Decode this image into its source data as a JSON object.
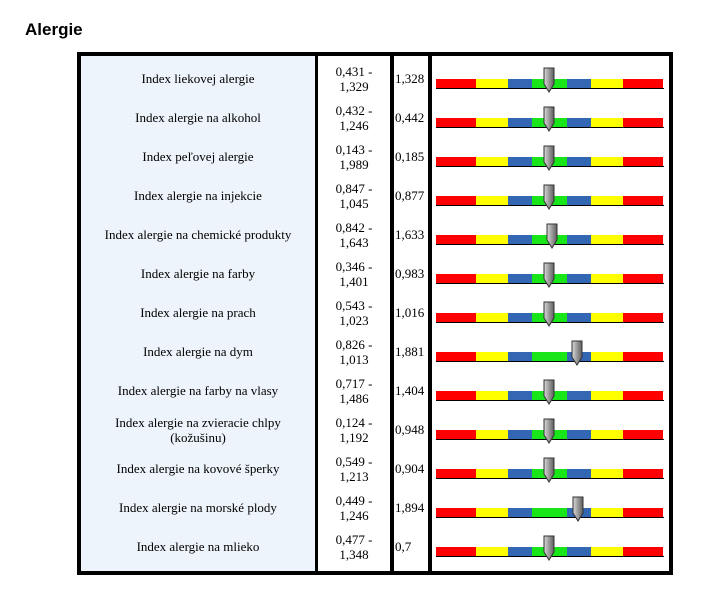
{
  "heading": "Alergie",
  "rows": [
    {
      "name": "Index liekovej alergie",
      "range_lo": "0,431 -",
      "range_hi": "1,329",
      "value": "1,328",
      "level": 1.328
    },
    {
      "name": "Index alergie na alkohol",
      "range_lo": "0,432 -",
      "range_hi": "1,246",
      "value": "0,442",
      "level": 0.442
    },
    {
      "name": "Index peľovej alergie",
      "range_lo": "0,143 -",
      "range_hi": "1,989",
      "value": "0,185",
      "level": 0.185
    },
    {
      "name": "Index alergie na injekcie",
      "range_lo": "0,847 -",
      "range_hi": "1,045",
      "value": "0,877",
      "level": 0.877
    },
    {
      "name": "Index alergie na chemické produkty",
      "range_lo": "0,842 -",
      "range_hi": "1,643",
      "value": "1,633",
      "level": 1.633
    },
    {
      "name": "Index alergie na farby",
      "range_lo": "0,346 -",
      "range_hi": "1,401",
      "value": "0,983",
      "level": 0.983
    },
    {
      "name": "Index alergie na prach",
      "range_lo": "0,543 -",
      "range_hi": "1,023",
      "value": "1,016",
      "level": 1.016
    },
    {
      "name": "Index alergie na dym",
      "range_lo": "0,826 -",
      "range_hi": "1,013",
      "value": "1,881",
      "level": 1.881
    },
    {
      "name": "Index alergie na farby na vlasy",
      "range_lo": "0,717 -",
      "range_hi": "1,486",
      "value": "1,404",
      "level": 1.404
    },
    {
      "name": "Index alergie na zvieracie chlpy (kožušinu)",
      "range_lo": "0,124 -",
      "range_hi": "1,192",
      "value": "0,948",
      "level": 0.948
    },
    {
      "name": "Index alergie na kovové šperky",
      "range_lo": "0,549 -",
      "range_hi": "1,213",
      "value": "0,904",
      "level": 0.904
    },
    {
      "name": "Index alergie na morské plody",
      "range_lo": "0,449 -",
      "range_hi": "1,246",
      "value": "1,894",
      "level": 1.894
    },
    {
      "name": "Index alergie na mlieko",
      "range_lo": "0,477 -",
      "range_hi": "1,348",
      "value": "0,7",
      "level": 0.7
    }
  ],
  "colors": {
    "red": "#ff0000",
    "yellow": "#ffff00",
    "blue": "#3366b3",
    "green": "#19e619",
    "pointer": "#888888"
  }
}
